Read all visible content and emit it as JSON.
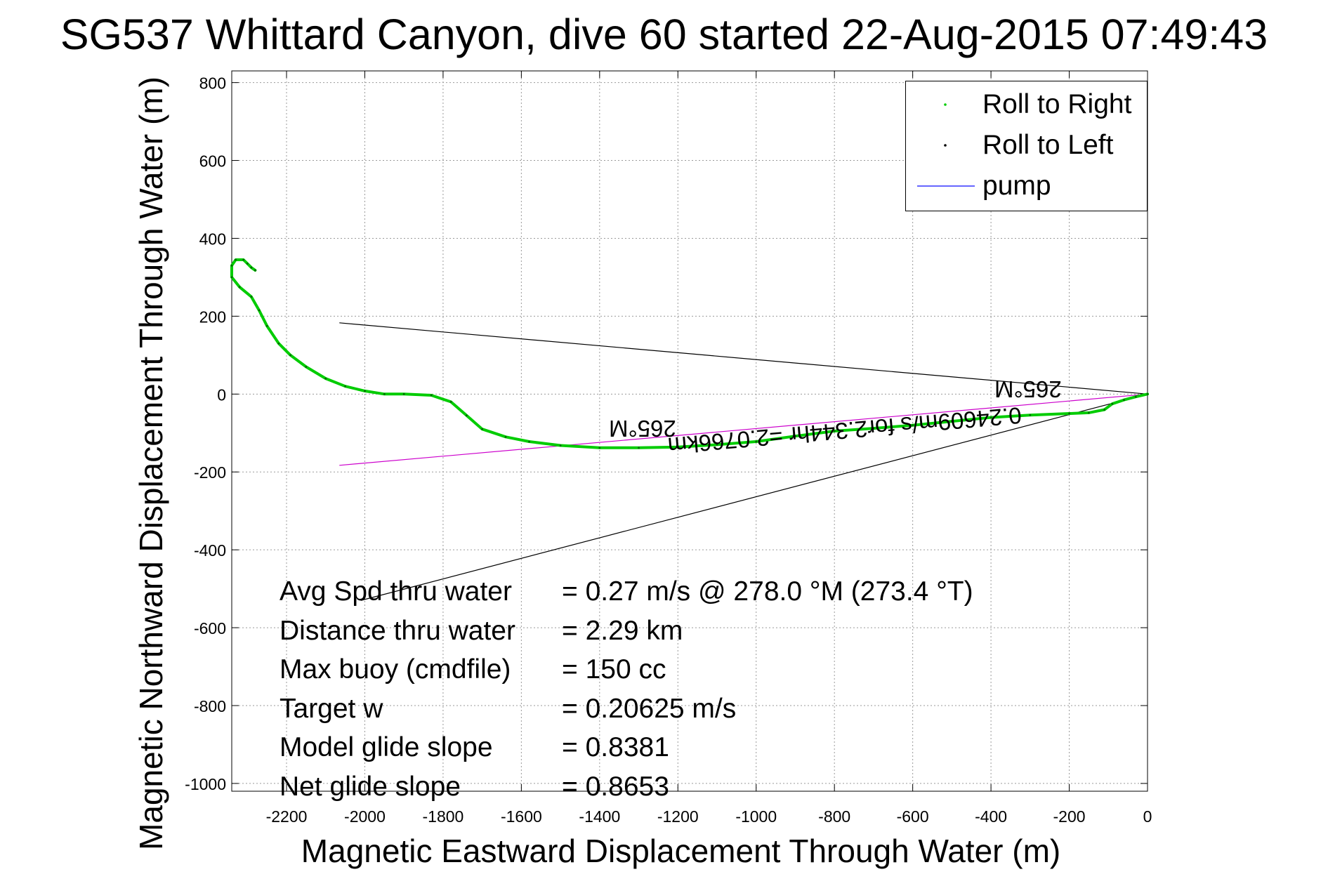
{
  "title": "SG537 Whittard Canyon, dive 60 started 22-Aug-2015 07:49:43",
  "colors": {
    "roll_right": "#00cc00",
    "roll_left": "#000000",
    "pump": "#3333ff",
    "course": "#cc00cc",
    "grid": "#9a9a9a"
  },
  "chart_data": {
    "type": "scatter",
    "xlabel": "Magnetic Eastward Displacement Through Water (m)",
    "ylabel": "Magnetic Northward Displacement Through Water (m)",
    "xlim": [
      -2340,
      0
    ],
    "ylim": [
      -1020,
      830
    ],
    "x_ticks": [
      -2200,
      -2000,
      -1800,
      -1600,
      -1400,
      -1200,
      -1000,
      -800,
      -600,
      -400,
      -200,
      0
    ],
    "y_ticks": [
      800,
      600,
      400,
      200,
      0,
      -200,
      -400,
      -600,
      -800,
      -1000
    ],
    "grid": true,
    "legend_position": "top-right",
    "series": [
      {
        "name": "Roll to Right",
        "color": "#00cc00",
        "points": [
          [
            0,
            0
          ],
          [
            -30,
            -7
          ],
          [
            -60,
            -15
          ],
          [
            -90,
            -25
          ],
          [
            -110,
            -40
          ],
          [
            -150,
            -48
          ],
          [
            -200,
            -50
          ],
          [
            -300,
            -54
          ],
          [
            -400,
            -60
          ],
          [
            -500,
            -70
          ],
          [
            -600,
            -80
          ],
          [
            -700,
            -88
          ],
          [
            -800,
            -95
          ],
          [
            -900,
            -108
          ],
          [
            -1000,
            -122
          ],
          [
            -1100,
            -130
          ],
          [
            -1200,
            -136
          ],
          [
            -1300,
            -138
          ],
          [
            -1400,
            -138
          ],
          [
            -1500,
            -132
          ],
          [
            -1580,
            -122
          ],
          [
            -1640,
            -110
          ],
          [
            -1700,
            -90
          ],
          [
            -1740,
            -55
          ],
          [
            -1780,
            -20
          ],
          [
            -1830,
            -3
          ],
          [
            -1900,
            0
          ],
          [
            -1950,
            0
          ],
          [
            -2000,
            8
          ],
          [
            -2050,
            20
          ],
          [
            -2100,
            40
          ],
          [
            -2150,
            70
          ],
          [
            -2190,
            100
          ],
          [
            -2220,
            130
          ],
          [
            -2250,
            175
          ],
          [
            -2270,
            215
          ],
          [
            -2290,
            250
          ],
          [
            -2320,
            275
          ],
          [
            -2340,
            300
          ],
          [
            -2340,
            330
          ],
          [
            -2330,
            345
          ],
          [
            -2310,
            345
          ],
          [
            -2300,
            335
          ],
          [
            -2290,
            325
          ],
          [
            -2280,
            318
          ]
        ]
      },
      {
        "name": "Roll to Left",
        "color": "#000000",
        "points": []
      },
      {
        "name": "pump",
        "color": "#3333ff",
        "points": []
      }
    ],
    "reference_lines": [
      {
        "from": [
          0,
          0
        ],
        "to": [
          -2065,
          183
        ],
        "color": "#000000"
      },
      {
        "from": [
          0,
          0
        ],
        "to": [
          -2065,
          -183
        ],
        "color": "#cc00cc"
      },
      {
        "from": [
          0,
          0
        ],
        "to": [
          -2010,
          -530
        ],
        "color": "#000000"
      }
    ],
    "annotations": [
      {
        "text": "265°M",
        "x": -1290,
        "y": -87,
        "rotation": 180
      },
      {
        "text": "265°M",
        "x": -305,
        "y": 14,
        "rotation": 180
      },
      {
        "text": "0.24609m/s for2.344hr =2.0766km",
        "x": -775,
        "y": -93,
        "rotation": 175
      }
    ]
  },
  "stats": [
    {
      "label": "Avg Spd thru water",
      "value": "=  0.27 m/s @ 278.0 °M (273.4 °T)"
    },
    {
      "label": "Distance thru water",
      "value": "=  2.29 km"
    },
    {
      "label": "Max buoy (cmdfile)",
      "value": "= 150 cc"
    },
    {
      "label": "Target w",
      "value": "= 0.20625 m/s"
    },
    {
      "label": "Model glide slope",
      "value": "= 0.8381"
    },
    {
      "label": "Net glide slope",
      "value": "= 0.8653"
    }
  ]
}
